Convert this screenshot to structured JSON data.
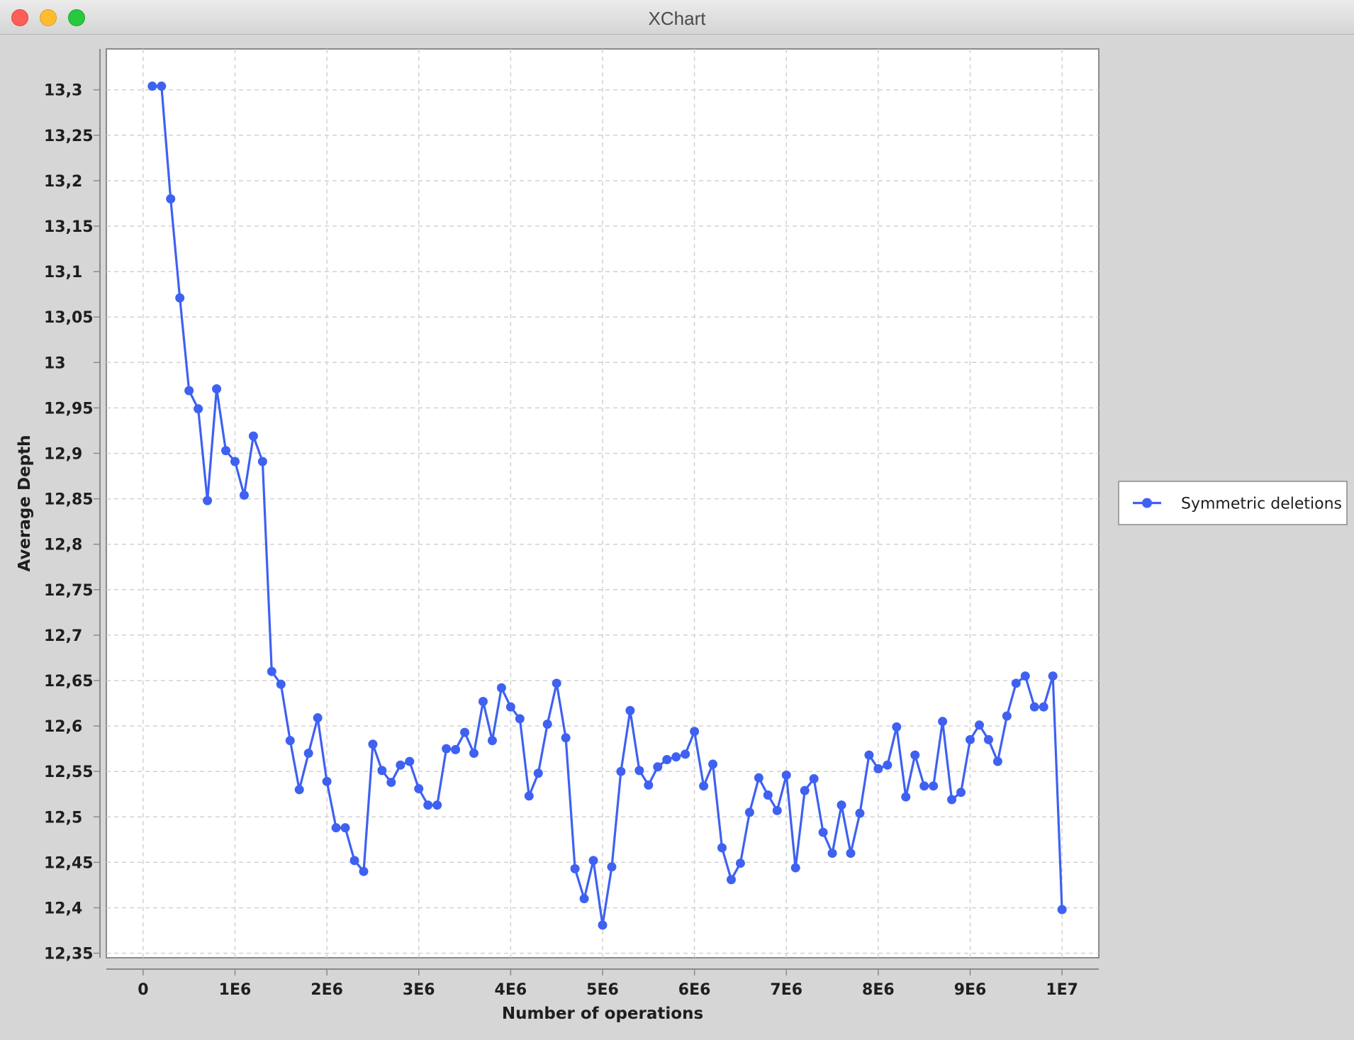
{
  "window": {
    "title": "XChart"
  },
  "chart_data": {
    "type": "line",
    "xlabel": "Number of operations",
    "ylabel": "Average Depth",
    "xlim": [
      -400000,
      10400000
    ],
    "ylim": [
      12.345,
      13.345
    ],
    "x_ticks": [
      {
        "value": 0,
        "label": "0"
      },
      {
        "value": 1000000,
        "label": "1E6"
      },
      {
        "value": 2000000,
        "label": "2E6"
      },
      {
        "value": 3000000,
        "label": "3E6"
      },
      {
        "value": 4000000,
        "label": "4E6"
      },
      {
        "value": 5000000,
        "label": "5E6"
      },
      {
        "value": 6000000,
        "label": "6E6"
      },
      {
        "value": 7000000,
        "label": "7E6"
      },
      {
        "value": 8000000,
        "label": "8E6"
      },
      {
        "value": 9000000,
        "label": "9E6"
      },
      {
        "value": 10000000,
        "label": "1E7"
      }
    ],
    "y_ticks": [
      {
        "value": 12.35,
        "label": "12,35"
      },
      {
        "value": 12.4,
        "label": "12,4"
      },
      {
        "value": 12.45,
        "label": "12,45"
      },
      {
        "value": 12.5,
        "label": "12,5"
      },
      {
        "value": 12.55,
        "label": "12,55"
      },
      {
        "value": 12.6,
        "label": "12,6"
      },
      {
        "value": 12.65,
        "label": "12,65"
      },
      {
        "value": 12.7,
        "label": "12,7"
      },
      {
        "value": 12.75,
        "label": "12,75"
      },
      {
        "value": 12.8,
        "label": "12,8"
      },
      {
        "value": 12.85,
        "label": "12,85"
      },
      {
        "value": 12.9,
        "label": "12,9"
      },
      {
        "value": 12.95,
        "label": "12,95"
      },
      {
        "value": 13.0,
        "label": "13"
      },
      {
        "value": 13.05,
        "label": "13,05"
      },
      {
        "value": 13.1,
        "label": "13,1"
      },
      {
        "value": 13.15,
        "label": "13,15"
      },
      {
        "value": 13.2,
        "label": "13,2"
      },
      {
        "value": 13.25,
        "label": "13,25"
      },
      {
        "value": 13.3,
        "label": "13,3"
      }
    ],
    "grid": true,
    "legend_position": "right",
    "series": [
      {
        "name": "Symmetric deletions",
        "color": "#3e61f2",
        "x": [
          100000,
          200000,
          300000,
          400000,
          500000,
          600000,
          700000,
          800000,
          900000,
          1000000,
          1100000,
          1200000,
          1300000,
          1400000,
          1500000,
          1600000,
          1700000,
          1800000,
          1900000,
          2000000,
          2100000,
          2200000,
          2300000,
          2400000,
          2500000,
          2600000,
          2700000,
          2800000,
          2900000,
          3000000,
          3100000,
          3200000,
          3300000,
          3400000,
          3500000,
          3600000,
          3700000,
          3800000,
          3900000,
          4000000,
          4100000,
          4200000,
          4300000,
          4400000,
          4500000,
          4600000,
          4700000,
          4800000,
          4900000,
          5000000,
          5100000,
          5200000,
          5300000,
          5400000,
          5500000,
          5600000,
          5700000,
          5800000,
          5900000,
          6000000,
          6100000,
          6200000,
          6300000,
          6400000,
          6500000,
          6600000,
          6700000,
          6800000,
          6900000,
          7000000,
          7100000,
          7200000,
          7300000,
          7400000,
          7500000,
          7600000,
          7700000,
          7800000,
          7900000,
          8000000,
          8100000,
          8200000,
          8300000,
          8400000,
          8500000,
          8600000,
          8700000,
          8800000,
          8900000,
          9000000,
          9100000,
          9200000,
          9300000,
          9400000,
          9500000,
          9600000,
          9700000,
          9800000,
          9900000,
          10000000
        ],
        "y": [
          13.304,
          13.304,
          13.18,
          13.071,
          12.969,
          12.949,
          12.848,
          12.971,
          12.903,
          12.891,
          12.854,
          12.919,
          12.891,
          12.66,
          12.646,
          12.584,
          12.53,
          12.57,
          12.609,
          12.539,
          12.488,
          12.488,
          12.452,
          12.44,
          12.58,
          12.551,
          12.538,
          12.557,
          12.561,
          12.531,
          12.513,
          12.513,
          12.575,
          12.574,
          12.593,
          12.57,
          12.627,
          12.584,
          12.642,
          12.621,
          12.608,
          12.523,
          12.548,
          12.602,
          12.647,
          12.587,
          12.443,
          12.41,
          12.452,
          12.381,
          12.445,
          12.55,
          12.617,
          12.551,
          12.535,
          12.555,
          12.563,
          12.566,
          12.569,
          12.594,
          12.534,
          12.558,
          12.466,
          12.431,
          12.449,
          12.505,
          12.543,
          12.524,
          12.507,
          12.546,
          12.444,
          12.529,
          12.542,
          12.483,
          12.46,
          12.513,
          12.46,
          12.504,
          12.568,
          12.553,
          12.557,
          12.599,
          12.522,
          12.568,
          12.534,
          12.534,
          12.605,
          12.519,
          12.527,
          12.585,
          12.601,
          12.585,
          12.561,
          12.611,
          12.647,
          12.655,
          12.621,
          12.621,
          12.655,
          12.398
        ]
      }
    ]
  }
}
